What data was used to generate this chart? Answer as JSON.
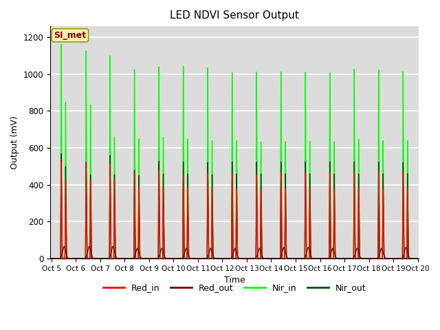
{
  "title": "LED NDVI Sensor Output",
  "xlabel": "Time",
  "ylabel": "Output (mV)",
  "ylim": [
    0,
    1260
  ],
  "yticks": [
    0,
    200,
    400,
    600,
    800,
    1000,
    1200
  ],
  "background_color": "#dcdcdc",
  "grid_color": "#ffffff",
  "legend_label": "SI_met",
  "legend_box_color": "#f5f0b0",
  "legend_box_border": "#999900",
  "series": {
    "Red_in": {
      "color": "#ff0000",
      "lw": 1.0
    },
    "Red_out": {
      "color": "#7a0000",
      "lw": 1.0
    },
    "Nir_in": {
      "color": "#00ff00",
      "lw": 1.0
    },
    "Nir_out": {
      "color": "#005500",
      "lw": 1.0
    }
  },
  "num_cycles": 15,
  "spike_offsets": [
    0.4,
    0.42,
    0.4,
    0.4,
    0.4,
    0.4,
    0.4,
    0.4,
    0.4,
    0.4,
    0.4,
    0.4,
    0.4,
    0.4,
    0.4
  ],
  "spike2_offsets": [
    0.58,
    0.6,
    0.58,
    0.58,
    0.58,
    0.58,
    0.58,
    0.58,
    0.58,
    0.58,
    0.58,
    0.58,
    0.58,
    0.58,
    0.58
  ],
  "cycle_peaks1": {
    "Red_in": [
      530,
      525,
      510,
      465,
      475,
      455,
      460,
      460,
      455,
      465,
      465,
      465,
      470,
      465,
      470
    ],
    "Nir_in": [
      1165,
      1130,
      1100,
      1025,
      1045,
      1045,
      1035,
      1010,
      1015,
      1015,
      1010,
      1010,
      1030,
      1025,
      1015
    ],
    "Nir_out": [
      570,
      500,
      560,
      480,
      530,
      525,
      520,
      525,
      525,
      525,
      525,
      525,
      525,
      525,
      520
    ]
  },
  "cycle_peaks2": {
    "Red_in": [
      430,
      430,
      420,
      390,
      395,
      380,
      380,
      380,
      375,
      380,
      380,
      375,
      380,
      375,
      378
    ],
    "Nir_in": [
      850,
      835,
      660,
      650,
      660,
      650,
      640,
      640,
      635,
      635,
      635,
      635,
      650,
      640,
      640
    ],
    "Nir_out": [
      500,
      455,
      455,
      450,
      460,
      460,
      455,
      460,
      460,
      460,
      460,
      460,
      460,
      460,
      460
    ]
  },
  "red_out_peaks": [
    65,
    65,
    65,
    55,
    55,
    55,
    55,
    55,
    55,
    60,
    60,
    55,
    55,
    55,
    60
  ],
  "red_out_center_offsets": [
    0.52,
    0.55,
    0.52,
    0.52,
    0.52,
    0.52,
    0.52,
    0.52,
    0.52,
    0.52,
    0.52,
    0.52,
    0.52,
    0.52,
    0.52
  ],
  "xtick_labels": [
    "Oct 5",
    "Oct 6",
    "Oct 7",
    "Oct 8",
    "Oct 9",
    "Oct 10",
    "Oct 11",
    "Oct 12",
    "Oct 13",
    "Oct 14",
    "Oct 15",
    "Oct 16",
    "Oct 17",
    "Oct 18",
    "Oct 19",
    "Oct 20"
  ]
}
